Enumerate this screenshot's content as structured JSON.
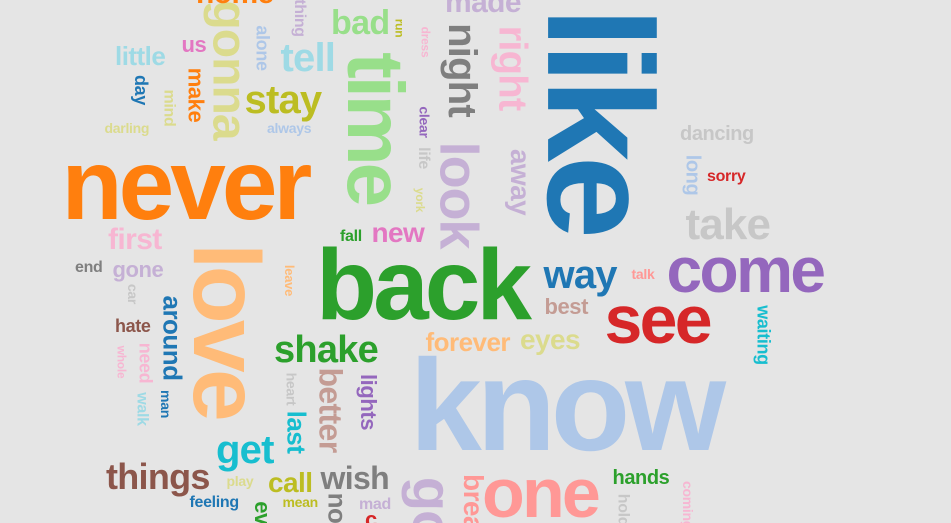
{
  "chart_data": {
    "type": "wordcloud",
    "title": "",
    "words": [
      {
        "text": "like",
        "weight": 100,
        "color": "#1f77b4"
      },
      {
        "text": "know",
        "weight": 96,
        "color": "#aec7e8"
      },
      {
        "text": "back",
        "weight": 74,
        "color": "#2ca02c"
      },
      {
        "text": "never",
        "weight": 73,
        "color": "#ff7f0e"
      },
      {
        "text": "love",
        "weight": 70,
        "color": "#ffbb78"
      },
      {
        "text": "time",
        "weight": 58,
        "color": "#98df8a"
      },
      {
        "text": "one",
        "weight": 47,
        "color": "#ff9896"
      },
      {
        "text": "see",
        "weight": 45,
        "color": "#d62728"
      },
      {
        "text": "come",
        "weight": 44,
        "color": "#9467bd"
      },
      {
        "text": "look",
        "weight": 36,
        "color": "#c5b0d5"
      },
      {
        "text": "gonna",
        "weight": 34,
        "color": "#dbdb8d"
      },
      {
        "text": "take",
        "weight": 30,
        "color": "#c7c7c7"
      },
      {
        "text": "way",
        "weight": 28,
        "color": "#1f77b4"
      },
      {
        "text": "get",
        "weight": 27,
        "color": "#17becf"
      },
      {
        "text": "things",
        "weight": 26,
        "color": "#8c564b"
      },
      {
        "text": "right",
        "weight": 27,
        "color": "#f7b6d2"
      },
      {
        "text": "night",
        "weight": 26,
        "color": "#7f7f7f"
      },
      {
        "text": "stay",
        "weight": 26,
        "color": "#bcbd22"
      },
      {
        "text": "tell",
        "weight": 25,
        "color": "#9edae5"
      },
      {
        "text": "bad",
        "weight": 23,
        "color": "#98df8a"
      },
      {
        "text": "shake",
        "weight": 24,
        "color": "#2ca02c"
      },
      {
        "text": "better",
        "weight": 24,
        "color": "#c49c94"
      },
      {
        "text": "wish",
        "weight": 23,
        "color": "#7f7f7f"
      },
      {
        "text": "away",
        "weight": 22,
        "color": "#c5b0d5"
      },
      {
        "text": "around",
        "weight": 22,
        "color": "#1f77b4"
      },
      {
        "text": "first",
        "weight": 22,
        "color": "#f7b6d2"
      },
      {
        "text": "new",
        "weight": 21,
        "color": "#e377c2"
      },
      {
        "text": "eyes",
        "weight": 21,
        "color": "#dbdb8d"
      },
      {
        "text": "forever",
        "weight": 20,
        "color": "#ffbb78"
      },
      {
        "text": "made",
        "weight": 22,
        "color": "#c5b0d5"
      },
      {
        "text": "last",
        "weight": 20,
        "color": "#17becf"
      },
      {
        "text": "call",
        "weight": 21,
        "color": "#bcbd22"
      },
      {
        "text": "best",
        "weight": 18,
        "color": "#c49c94"
      },
      {
        "text": "little",
        "weight": 19,
        "color": "#9edae5"
      },
      {
        "text": "dancing",
        "weight": 17,
        "color": "#c7c7c7"
      },
      {
        "text": "make",
        "weight": 18,
        "color": "#ff7f0e"
      },
      {
        "text": "lights",
        "weight": 17,
        "color": "#9467bd"
      },
      {
        "text": "gone",
        "weight": 17,
        "color": "#c5b0d5"
      },
      {
        "text": "hands",
        "weight": 16,
        "color": "#2ca02c"
      },
      {
        "text": "long",
        "weight": 16,
        "color": "#aec7e8"
      },
      {
        "text": "us",
        "weight": 16,
        "color": "#e377c2"
      },
      {
        "text": "alone",
        "weight": 14,
        "color": "#aec7e8"
      },
      {
        "text": "hate",
        "weight": 15,
        "color": "#8c564b"
      },
      {
        "text": "need",
        "weight": 15,
        "color": "#f7b6d2"
      },
      {
        "text": "waiting",
        "weight": 14,
        "color": "#17becf"
      },
      {
        "text": "sorry",
        "weight": 13,
        "color": "#d62728"
      },
      {
        "text": "day",
        "weight": 14,
        "color": "#1f77b4"
      },
      {
        "text": "life",
        "weight": 14,
        "color": "#c7c7c7"
      },
      {
        "text": "mind",
        "weight": 14,
        "color": "#dbdb8d"
      },
      {
        "text": "clear",
        "weight": 12,
        "color": "#9467bd"
      },
      {
        "text": "feeling",
        "weight": 14,
        "color": "#1f77b4"
      },
      {
        "text": "mean",
        "weight": 14,
        "color": "#bcbd22"
      },
      {
        "text": "walk",
        "weight": 14,
        "color": "#9edae5"
      },
      {
        "text": "end",
        "weight": 14,
        "color": "#7f7f7f"
      },
      {
        "text": "play",
        "weight": 13,
        "color": "#dbdb8d"
      },
      {
        "text": "fall",
        "weight": 13,
        "color": "#2ca02c"
      },
      {
        "text": "darling",
        "weight": 12,
        "color": "#dbdb8d"
      },
      {
        "text": "always",
        "weight": 12,
        "color": "#aec7e8"
      },
      {
        "text": "man",
        "weight": 12,
        "color": "#1f77b4"
      },
      {
        "text": "heart",
        "weight": 12,
        "color": "#c7c7c7"
      },
      {
        "text": "talk",
        "weight": 12,
        "color": "#ff9896"
      },
      {
        "text": "whole",
        "weight": 11,
        "color": "#f7b6d2"
      },
      {
        "text": "car",
        "weight": 12,
        "color": "#c7c7c7"
      },
      {
        "text": "leave",
        "weight": 11,
        "color": "#ffbb78"
      },
      {
        "text": "york",
        "weight": 11,
        "color": "#dbdb8d"
      },
      {
        "text": "dress",
        "weight": 10,
        "color": "#f7b6d2"
      },
      {
        "text": "run",
        "weight": 10,
        "color": "#bcbd22"
      },
      {
        "text": "mad",
        "weight": 13,
        "color": "#c5b0d5"
      },
      {
        "text": "home",
        "weight": 24,
        "color": "#ff7f0e"
      },
      {
        "text": "thing",
        "weight": 13,
        "color": "#c5b0d5"
      },
      {
        "text": "go",
        "weight": 40,
        "color": "#c5b0d5"
      },
      {
        "text": "break",
        "weight": 22,
        "color": "#ff9896"
      },
      {
        "text": "hold",
        "weight": 12,
        "color": "#c7c7c7"
      },
      {
        "text": "coming",
        "weight": 12,
        "color": "#f7b6d2"
      },
      {
        "text": "no",
        "weight": 18,
        "color": "#7f7f7f"
      },
      {
        "text": "ev",
        "weight": 16,
        "color": "#2ca02c"
      },
      {
        "text": "c",
        "weight": 14,
        "color": "#d62728"
      }
    ]
  }
}
